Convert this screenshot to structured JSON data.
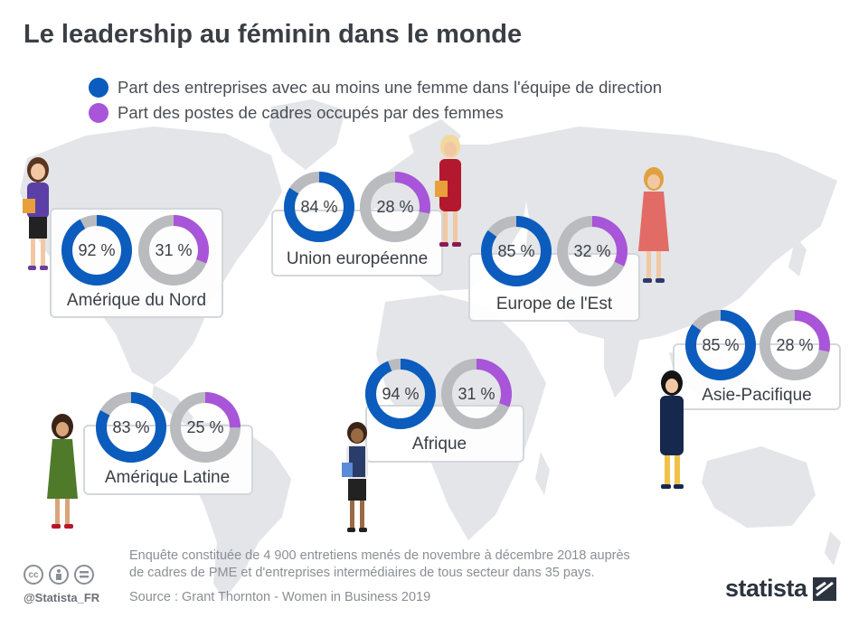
{
  "header": {
    "title": "Le leadership au féminin dans le monde"
  },
  "legend": {
    "items": [
      {
        "label": "Part des entreprises avec au moins une femme dans l'équipe de direction",
        "color": "#0b5cbd"
      },
      {
        "label": "Part des postes de cadres occupés par des femmes",
        "color": "#a855d9"
      }
    ]
  },
  "colors": {
    "blue": "#0b5cbd",
    "purple": "#a855d9",
    "track": "#b9bbbf",
    "map": "#e3e5e8"
  },
  "chart_data": {
    "type": "pie",
    "series_names": [
      "Part des entreprises avec au moins une femme dans l'équipe de direction",
      "Part des postes de cadres occupés par des femmes"
    ],
    "regions": [
      {
        "name": "Amérique du Nord",
        "values": [
          92,
          31
        ],
        "labels": [
          "92 %",
          "31 %"
        ]
      },
      {
        "name": "Union européenne",
        "values": [
          84,
          28
        ],
        "labels": [
          "84 %",
          "28 %"
        ]
      },
      {
        "name": "Europe de l'Est",
        "values": [
          85,
          32
        ],
        "labels": [
          "85 %",
          "32 %"
        ]
      },
      {
        "name": "Asie-Pacifique",
        "values": [
          85,
          28
        ],
        "labels": [
          "85 %",
          "28 %"
        ]
      },
      {
        "name": "Afrique",
        "values": [
          94,
          31
        ],
        "labels": [
          "94 %",
          "31 %"
        ]
      },
      {
        "name": "Amérique Latine",
        "values": [
          83,
          25
        ],
        "labels": [
          "83 %",
          "25 %"
        ]
      }
    ]
  },
  "footer": {
    "note_line1": "Enquête constituée de 4 900 entretiens menés de novembre à décembre 2018 auprès",
    "note_line2": "de cadres de PME et d'entreprises intermédiaires de tous secteur dans 35 pays.",
    "source": "Source : Grant Thornton - Women in Business 2019",
    "handle": "@Statista_FR",
    "logo": "statista",
    "license_icons": [
      "cc-icon",
      "by-icon",
      "nd-icon"
    ]
  }
}
